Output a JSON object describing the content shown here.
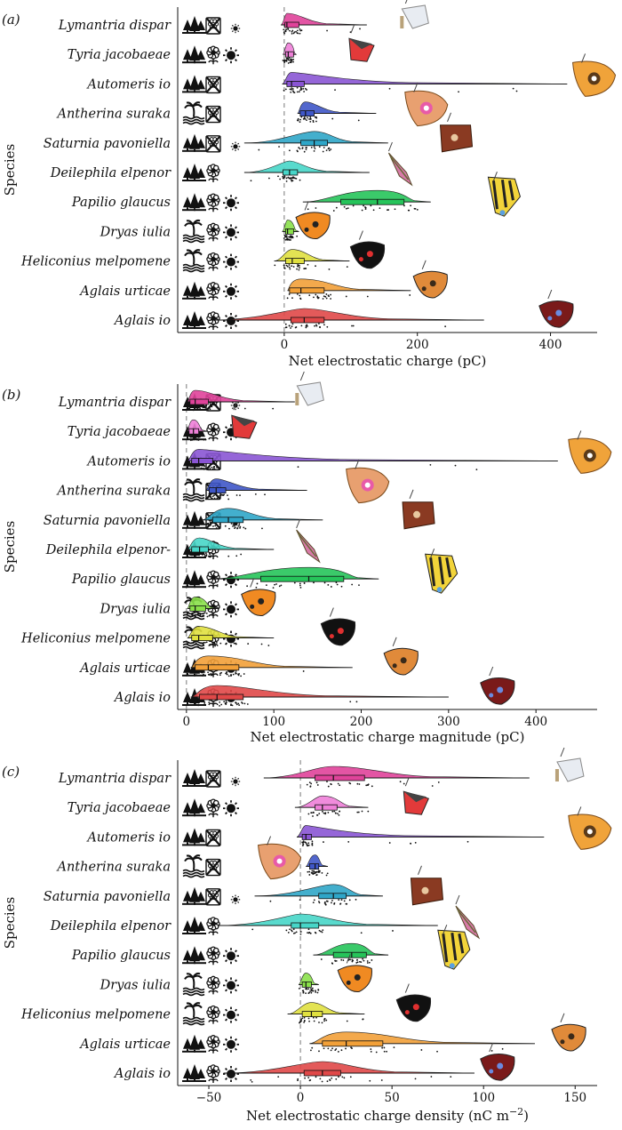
{
  "chart_data": [
    {
      "type": "violin-boxplot",
      "panel_label": "(a)",
      "ylabel": "Species",
      "xlabel": "Net electrostatic charge (pC)",
      "xlim": [
        -160,
        470
      ],
      "xticks": [
        0,
        200,
        400
      ],
      "reference_line": 0,
      "categories": [
        "Lymantria dispar",
        "Tyria jacobaeae",
        "Automeris io",
        "Antherina suraka",
        "Saturnia pavoniella",
        "Deilephila elpenor",
        "Papilio glaucus",
        "Dryas iulia",
        "Heliconius melpomene",
        "Aglais urticae",
        "Aglais io"
      ],
      "series": [
        {
          "species": "Lymantria dispar",
          "color": "#e0439a",
          "min": -5,
          "q1": 1,
          "median": 4,
          "q3": 22,
          "max": 124
        },
        {
          "species": "Tyria jacobaeae",
          "color": "#ee80d8",
          "min": -2,
          "q1": 2,
          "median": 6,
          "q3": 14,
          "max": 18
        },
        {
          "species": "Automeris io",
          "color": "#8a55d4",
          "min": -3,
          "q1": 4,
          "median": 11,
          "q3": 30,
          "max": 425
        },
        {
          "species": "Antherina suraka",
          "color": "#3f57c8",
          "min": 20,
          "q1": 24,
          "median": 32,
          "q3": 45,
          "max": 138
        },
        {
          "species": "Saturnia pavoniella",
          "color": "#2fa6c8",
          "min": -60,
          "q1": 25,
          "median": 45,
          "q3": 65,
          "max": 156
        },
        {
          "species": "Deilephila elpenor",
          "color": "#47d6c8",
          "min": -60,
          "q1": -2,
          "median": 8,
          "q3": 20,
          "max": 128
        },
        {
          "species": "Papilio glaucus",
          "color": "#26c45a",
          "min": 28,
          "q1": 85,
          "median": 140,
          "q3": 180,
          "max": 220
        },
        {
          "species": "Dryas iulia",
          "color": "#8ae04a",
          "min": -3,
          "q1": 2,
          "median": 5,
          "q3": 14,
          "max": 22
        },
        {
          "species": "Heliconius melpomene",
          "color": "#e0e040",
          "min": -15,
          "q1": 2,
          "median": 12,
          "q3": 30,
          "max": 98
        },
        {
          "species": "Aglais urticae",
          "color": "#f2a038",
          "min": 5,
          "q1": 8,
          "median": 25,
          "q3": 60,
          "max": 190
        },
        {
          "species": "Aglais io",
          "color": "#e04848",
          "min": -110,
          "q1": 10,
          "median": 30,
          "q3": 60,
          "max": 300
        }
      ]
    },
    {
      "type": "violin-boxplot",
      "panel_label": "(b)",
      "ylabel": "Species",
      "xlabel": "Net electrostatic charge magnitude (pC)",
      "xlim": [
        -10,
        470
      ],
      "xticks": [
        0,
        100,
        200,
        300,
        400
      ],
      "reference_line": 0,
      "categories": [
        "Lymantria dispar",
        "Tyria jacobaeae",
        "Automeris io",
        "Antherina suraka",
        "Saturnia pavoniella",
        "Deilephila elpenor-",
        "Papilio glaucus",
        "Dryas iulia",
        "Heliconius melpomene",
        "Aglais urticae",
        "Aglais io"
      ],
      "series": [
        {
          "species": "Lymantria dispar",
          "color": "#e0439a",
          "min": 1,
          "q1": 4,
          "median": 10,
          "q3": 25,
          "max": 124
        },
        {
          "species": "Tyria jacobaeae",
          "color": "#ee80d8",
          "min": 1,
          "q1": 3,
          "median": 8,
          "q3": 14,
          "max": 24
        },
        {
          "species": "Automeris io",
          "color": "#8a55d4",
          "min": 1,
          "q1": 6,
          "median": 14,
          "q3": 30,
          "max": 425
        },
        {
          "species": "Antherina suraka",
          "color": "#3f57c8",
          "min": 22,
          "q1": 26,
          "median": 34,
          "q3": 45,
          "max": 138
        },
        {
          "species": "Saturnia pavoniella",
          "color": "#2fa6c8",
          "min": 18,
          "q1": 30,
          "median": 48,
          "q3": 65,
          "max": 156
        },
        {
          "species": "Deilephila elpenor-",
          "color": "#47d6c8",
          "min": 1,
          "q1": 6,
          "median": 15,
          "q3": 25,
          "max": 100
        },
        {
          "species": "Papilio glaucus",
          "color": "#26c45a",
          "min": 28,
          "q1": 85,
          "median": 140,
          "q3": 180,
          "max": 220
        },
        {
          "species": "Dryas iulia",
          "color": "#8ae04a",
          "min": 1,
          "q1": 4,
          "median": 10,
          "q3": 22,
          "max": 36
        },
        {
          "species": "Heliconius melpomene",
          "color": "#e0e040",
          "min": 1,
          "q1": 6,
          "median": 14,
          "q3": 30,
          "max": 100
        },
        {
          "species": "Aglais urticae",
          "color": "#f2a038",
          "min": 5,
          "q1": 10,
          "median": 25,
          "q3": 60,
          "max": 190
        },
        {
          "species": "Aglais io",
          "color": "#e04848",
          "min": 5,
          "q1": 15,
          "median": 35,
          "q3": 65,
          "max": 300
        }
      ]
    },
    {
      "type": "violin-boxplot",
      "panel_label": "(c)",
      "ylabel": "Species",
      "xlabel": "Net electrostatic charge density (nC m",
      "xlabel_sup": "−2",
      "xlabel_end": ")",
      "xlim": [
        -67,
        162
      ],
      "xticks": [
        -50,
        0,
        50,
        100,
        150
      ],
      "reference_line": 0,
      "categories": [
        "Lymantria dispar",
        "Tyria jacobaeae",
        "Automeris io",
        "Antherina suraka",
        "Saturnia pavoniella",
        "Deilephila elpenor",
        "Papilio glaucus",
        "Dryas iulia",
        "Heliconius melpomene",
        "Aglais urticae",
        "Aglais io"
      ],
      "series": [
        {
          "species": "Lymantria dispar",
          "color": "#e0439a",
          "min": -20,
          "q1": 8,
          "median": 18,
          "q3": 35,
          "max": 125
        },
        {
          "species": "Tyria jacobaeae",
          "color": "#ee80d8",
          "min": -3,
          "q1": 8,
          "median": 12,
          "q3": 20,
          "max": 37
        },
        {
          "species": "Automeris io",
          "color": "#8a55d4",
          "min": -2,
          "q1": 1,
          "median": 3,
          "q3": 6,
          "max": 133
        },
        {
          "species": "Antherina suraka",
          "color": "#3f57c8",
          "min": 3,
          "q1": 5,
          "median": 8,
          "q3": 10,
          "max": 15
        },
        {
          "species": "Saturnia pavoniella",
          "color": "#2fa6c8",
          "min": -25,
          "q1": 10,
          "median": 18,
          "q3": 25,
          "max": 45
        },
        {
          "species": "Deilephila elpenor",
          "color": "#47d6c8",
          "min": -45,
          "q1": -5,
          "median": 0,
          "q3": 10,
          "max": 75
        },
        {
          "species": "Papilio glaucus",
          "color": "#26c45a",
          "min": 7,
          "q1": 18,
          "median": 28,
          "q3": 36,
          "max": 48
        },
        {
          "species": "Dryas iulia",
          "color": "#8ae04a",
          "min": -1,
          "q1": 1,
          "median": 3,
          "q3": 6,
          "max": 10
        },
        {
          "species": "Heliconius melpomene",
          "color": "#e0e040",
          "min": -7,
          "q1": 1,
          "median": 6,
          "q3": 12,
          "max": 35
        },
        {
          "species": "Aglais urticae",
          "color": "#f2a038",
          "min": 5,
          "q1": 12,
          "median": 25,
          "q3": 45,
          "max": 128
        },
        {
          "species": "Aglais io",
          "color": "#e04848",
          "min": -42,
          "q1": 2,
          "median": 12,
          "q3": 22,
          "max": 95
        }
      ]
    }
  ],
  "icons": {
    "rows": [
      [
        "forest-icon",
        "no-flower-icon",
        "moon-sun-icon"
      ],
      [
        "forest-icon",
        "flower-icon",
        "sun-icon"
      ],
      [
        "forest-icon",
        "no-flower-icon",
        "moon-icon"
      ],
      [
        "wetland-icon",
        "no-flower-icon",
        "moon-icon"
      ],
      [
        "forest-icon",
        "no-flower-icon",
        "moon-sun-icon"
      ],
      [
        "forest-icon",
        "flower-icon",
        "moon-icon"
      ],
      [
        "forest-icon",
        "flower-icon",
        "sun-icon"
      ],
      [
        "wetland-icon",
        "flower-icon",
        "sun-icon"
      ],
      [
        "wetland-icon",
        "flower-icon",
        "sun-icon"
      ],
      [
        "forest-icon",
        "flower-icon",
        "sun-icon"
      ],
      [
        "forest-icon",
        "flower-icon",
        "sun-icon"
      ]
    ],
    "insect_images": [
      "lymantria-dispar-image",
      "tyria-jacobaeae-image",
      "automeris-io-image",
      "antherina-suraka-image",
      "saturnia-pavoniella-image",
      "deilephila-elpenor-image",
      "papilio-glaucus-image",
      "dryas-iulia-image",
      "heliconius-melpomene-image",
      "aglais-urticae-image",
      "aglais-io-image"
    ]
  }
}
